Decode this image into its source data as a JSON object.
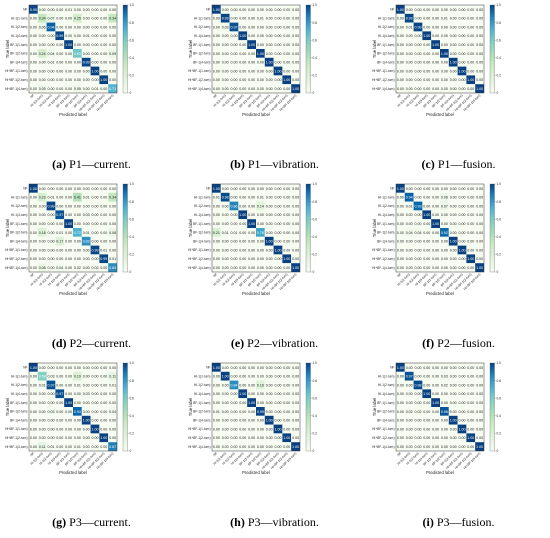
{
  "class_labels": [
    "NF",
    "HI-1(1-turn)",
    "HI-1(2-turn)",
    "HI-1(4-turn)",
    "BF-1(1-turn)",
    "BF-1(2-turn)",
    "BF-1(4-turn)",
    "HI+BF-1(1-turn)",
    "HI+BF-1(2-turn)",
    "HI+BF-1(4-turn)"
  ],
  "axis": {
    "ylabel": "True label",
    "xlabel": "Predicted label"
  },
  "colorbar": {
    "ticks": [
      "1.0",
      "0.8",
      "0.6",
      "0.4",
      "0.2",
      "0"
    ],
    "low_color": "#f7fcf0",
    "mid_color": "#7bccc4",
    "high_color": "#084081"
  },
  "chart_data": [
    {
      "type": "heatmap",
      "id": "a",
      "caption_letter": "(a)",
      "caption_text": " P1—current.",
      "matrix": [
        [
          0.99,
          0.0,
          0.0,
          0.0,
          0.01,
          0.0,
          0.0,
          0.0,
          0.0,
          0.0
        ],
        [
          0.0,
          0.34,
          0.07,
          0.0,
          0.0,
          0.25,
          0.0,
          0.0,
          0.0,
          0.34
        ],
        [
          0.0,
          0.06,
          0.94,
          0.0,
          0.0,
          0.0,
          0.0,
          0.0,
          0.0,
          0.0
        ],
        [
          0.0,
          0.0,
          0.0,
          0.99,
          0.0,
          0.0,
          0.01,
          0.0,
          0.0,
          0.0
        ],
        [
          0.0,
          0.0,
          0.0,
          0.0,
          1.0,
          0.0,
          0.0,
          0.0,
          0.0,
          0.0
        ],
        [
          0.0,
          0.24,
          0.04,
          0.0,
          0.0,
          0.63,
          0.0,
          0.0,
          0.0,
          0.09
        ],
        [
          0.0,
          0.0,
          0.01,
          0.0,
          0.0,
          0.0,
          0.99,
          0.0,
          0.0,
          0.0
        ],
        [
          0.0,
          0.0,
          0.0,
          0.0,
          0.0,
          0.0,
          0.0,
          1.0,
          0.0,
          0.0
        ],
        [
          0.0,
          0.0,
          0.0,
          0.0,
          0.0,
          0.0,
          0.0,
          0.0,
          1.0,
          0.0
        ],
        [
          0.0,
          0.05,
          0.0,
          0.0,
          0.0,
          0.05,
          0.0,
          0.01,
          0.0,
          0.71
        ]
      ]
    },
    {
      "type": "heatmap",
      "id": "b",
      "caption_letter": "(b)",
      "caption_text": " P1—vibration.",
      "matrix": [
        [
          1.0,
          0.0,
          0.0,
          0.0,
          0.0,
          0.0,
          0.0,
          0.0,
          0.0,
          0.0
        ],
        [
          0.0,
          0.99,
          0.0,
          0.0,
          0.0,
          0.01,
          0.0,
          0.0,
          0.0,
          0.0
        ],
        [
          0.0,
          0.03,
          0.97,
          0.0,
          0.0,
          0.0,
          0.0,
          0.0,
          0.0,
          0.0
        ],
        [
          0.0,
          0.0,
          0.0,
          1.0,
          0.0,
          0.0,
          0.0,
          0.0,
          0.0,
          0.0
        ],
        [
          0.0,
          0.0,
          0.0,
          0.0,
          1.0,
          0.0,
          0.0,
          0.0,
          0.0,
          0.0
        ],
        [
          0.0,
          0.0,
          0.0,
          0.0,
          0.0,
          1.0,
          0.0,
          0.0,
          0.0,
          0.0
        ],
        [
          0.0,
          0.0,
          0.0,
          0.0,
          0.0,
          0.0,
          1.0,
          0.0,
          0.0,
          0.0
        ],
        [
          0.0,
          0.0,
          0.0,
          0.0,
          0.0,
          0.0,
          0.0,
          1.0,
          0.0,
          0.0
        ],
        [
          0.0,
          0.0,
          0.0,
          0.0,
          0.0,
          0.0,
          0.0,
          0.0,
          1.0,
          0.0
        ],
        [
          0.0,
          0.0,
          0.0,
          0.0,
          0.0,
          0.0,
          0.0,
          0.0,
          0.0,
          1.0
        ]
      ]
    },
    {
      "type": "heatmap",
      "id": "c",
      "caption_letter": "(c)",
      "caption_text": " P1—fusion.",
      "matrix": [
        [
          1.0,
          0.0,
          0.0,
          0.0,
          0.0,
          0.0,
          0.0,
          0.0,
          0.0,
          0.0
        ],
        [
          0.0,
          0.99,
          0.0,
          0.0,
          0.0,
          0.01,
          0.0,
          0.0,
          0.0,
          0.0
        ],
        [
          0.0,
          0.01,
          0.99,
          0.0,
          0.0,
          0.0,
          0.0,
          0.0,
          0.0,
          0.0
        ],
        [
          0.0,
          0.0,
          0.0,
          1.0,
          0.0,
          0.0,
          0.0,
          0.0,
          0.0,
          0.0
        ],
        [
          0.0,
          0.0,
          0.0,
          0.0,
          1.0,
          0.0,
          0.0,
          0.0,
          0.0,
          0.0
        ],
        [
          0.0,
          0.0,
          0.0,
          0.0,
          0.0,
          1.0,
          0.0,
          0.0,
          0.0,
          0.0
        ],
        [
          0.0,
          0.0,
          0.0,
          0.0,
          0.0,
          0.0,
          1.0,
          0.0,
          0.0,
          0.0
        ],
        [
          0.0,
          0.0,
          0.0,
          0.0,
          0.0,
          0.0,
          0.0,
          1.0,
          0.0,
          0.0
        ],
        [
          0.0,
          0.0,
          0.0,
          0.0,
          0.0,
          0.0,
          0.0,
          0.0,
          1.0,
          0.0
        ],
        [
          0.0,
          0.0,
          0.0,
          0.0,
          0.0,
          0.0,
          0.0,
          0.0,
          0.0,
          1.0
        ]
      ]
    },
    {
      "type": "heatmap",
      "id": "d",
      "caption_letter": "(d)",
      "caption_text": " P2—current.",
      "matrix": [
        [
          1.0,
          0.0,
          0.0,
          0.0,
          0.0,
          0.0,
          0.0,
          0.0,
          0.0,
          0.0
        ],
        [
          0.0,
          0.23,
          0.01,
          0.0,
          0.0,
          0.41,
          0.01,
          0.0,
          0.0,
          0.34
        ],
        [
          0.0,
          0.0,
          0.99,
          0.0,
          0.0,
          0.0,
          0.0,
          0.0,
          0.0,
          0.0
        ],
        [
          0.0,
          0.0,
          0.0,
          0.97,
          0.0,
          0.0,
          0.03,
          0.0,
          0.0,
          0.0
        ],
        [
          0.0,
          0.0,
          0.0,
          0.0,
          1.0,
          0.0,
          0.0,
          0.0,
          0.0,
          0.0
        ],
        [
          0.0,
          0.18,
          0.0,
          0.01,
          0.0,
          0.72,
          0.01,
          0.0,
          0.0,
          0.08
        ],
        [
          0.0,
          0.0,
          0.0,
          0.17,
          0.0,
          0.0,
          0.83,
          0.0,
          0.0,
          0.0
        ],
        [
          0.0,
          0.0,
          0.0,
          0.0,
          0.0,
          0.0,
          0.0,
          0.99,
          0.01,
          0.0
        ],
        [
          0.0,
          0.0,
          0.0,
          0.0,
          0.0,
          0.0,
          0.0,
          0.0,
          0.99,
          0.01
        ],
        [
          0.0,
          0.08,
          0.0,
          0.04,
          0.0,
          0.02,
          0.0,
          0.02,
          0.0,
          0.84
        ]
      ]
    },
    {
      "type": "heatmap",
      "id": "e",
      "caption_letter": "(e)",
      "caption_text": " P2—vibration.",
      "matrix": [
        [
          1.0,
          0.0,
          0.0,
          0.0,
          0.0,
          0.0,
          0.0,
          0.0,
          0.0,
          0.0
        ],
        [
          0.01,
          0.98,
          0.0,
          0.0,
          0.0,
          0.01,
          0.0,
          0.0,
          0.0,
          0.0
        ],
        [
          0.0,
          0.0,
          0.86,
          0.0,
          0.0,
          0.14,
          0.0,
          0.0,
          0.0,
          0.0
        ],
        [
          0.0,
          0.0,
          0.0,
          1.0,
          0.0,
          0.0,
          0.0,
          0.0,
          0.0,
          0.0
        ],
        [
          0.0,
          0.0,
          0.0,
          0.0,
          1.0,
          0.0,
          0.0,
          0.0,
          0.0,
          0.0
        ],
        [
          0.21,
          0.01,
          0.01,
          0.0,
          0.0,
          0.76,
          0.0,
          0.0,
          0.0,
          0.0
        ],
        [
          0.0,
          0.0,
          0.0,
          0.0,
          0.0,
          0.0,
          1.0,
          0.0,
          0.0,
          0.0
        ],
        [
          0.0,
          0.0,
          0.0,
          0.0,
          0.0,
          0.0,
          0.0,
          1.0,
          0.0,
          0.0
        ],
        [
          0.0,
          0.0,
          0.0,
          0.0,
          0.0,
          0.0,
          0.0,
          0.0,
          1.0,
          0.0
        ],
        [
          0.0,
          0.0,
          0.0,
          0.0,
          0.0,
          0.0,
          0.0,
          0.0,
          0.0,
          1.0
        ]
      ]
    },
    {
      "type": "heatmap",
      "id": "f",
      "caption_letter": "(f)",
      "caption_text": " P2—fusion.",
      "matrix": [
        [
          1.0,
          0.0,
          0.0,
          0.0,
          0.0,
          0.0,
          0.0,
          0.0,
          0.0,
          0.0
        ],
        [
          0.0,
          0.94,
          0.0,
          0.0,
          0.0,
          0.06,
          0.0,
          0.0,
          0.0,
          0.0
        ],
        [
          0.0,
          0.01,
          0.93,
          0.0,
          0.0,
          0.07,
          0.0,
          0.0,
          0.0,
          0.0
        ],
        [
          0.0,
          0.0,
          0.0,
          1.0,
          0.0,
          0.0,
          0.0,
          0.0,
          0.0,
          0.0
        ],
        [
          0.0,
          0.0,
          0.0,
          0.0,
          1.0,
          0.0,
          0.0,
          0.0,
          0.0,
          0.0
        ],
        [
          0.0,
          0.04,
          0.04,
          0.0,
          0.0,
          0.92,
          0.0,
          0.0,
          0.0,
          0.0
        ],
        [
          0.0,
          0.0,
          0.0,
          0.0,
          0.0,
          0.0,
          1.0,
          0.0,
          0.0,
          0.0
        ],
        [
          0.0,
          0.0,
          0.0,
          0.0,
          0.0,
          0.0,
          0.0,
          1.0,
          0.0,
          0.0
        ],
        [
          0.0,
          0.0,
          0.0,
          0.0,
          0.0,
          0.0,
          0.0,
          0.0,
          1.0,
          0.0
        ],
        [
          0.0,
          0.0,
          0.0,
          0.0,
          0.0,
          0.0,
          0.0,
          0.0,
          0.0,
          1.0
        ]
      ]
    },
    {
      "type": "heatmap",
      "id": "g",
      "caption_letter": "(g)",
      "caption_text": " P3—current.",
      "matrix": [
        [
          1.0,
          0.0,
          0.0,
          0.0,
          0.0,
          0.0,
          0.0,
          0.0,
          0.0,
          0.0
        ],
        [
          0.0,
          0.58,
          0.03,
          0.0,
          0.0,
          0.19,
          0.0,
          0.0,
          0.0,
          0.11
        ],
        [
          0.0,
          0.01,
          0.97,
          0.0,
          0.0,
          0.01,
          0.0,
          0.0,
          0.0,
          0.01
        ],
        [
          0.0,
          0.0,
          0.0,
          0.97,
          0.0,
          0.0,
          0.03,
          0.0,
          0.0,
          0.0
        ],
        [
          0.0,
          0.0,
          0.0,
          0.0,
          1.0,
          0.0,
          0.0,
          0.0,
          0.0,
          0.0
        ],
        [
          0.0,
          0.0,
          0.03,
          0.0,
          0.0,
          0.93,
          0.0,
          0.0,
          0.0,
          0.04
        ],
        [
          0.0,
          0.0,
          0.0,
          0.0,
          0.0,
          0.0,
          1.0,
          0.0,
          0.0,
          0.0
        ],
        [
          0.0,
          0.0,
          0.0,
          0.0,
          0.0,
          0.0,
          0.0,
          1.0,
          0.0,
          0.0
        ],
        [
          0.0,
          0.0,
          0.0,
          0.0,
          0.0,
          0.0,
          0.0,
          0.0,
          1.0,
          0.0
        ],
        [
          0.0,
          0.11,
          0.01,
          0.0,
          0.0,
          0.01,
          0.0,
          0.0,
          0.0,
          0.87
        ]
      ]
    },
    {
      "type": "heatmap",
      "id": "h",
      "caption_letter": "(h)",
      "caption_text": " P3—vibration.",
      "matrix": [
        [
          1.0,
          0.0,
          0.0,
          0.0,
          0.0,
          0.0,
          0.0,
          0.0,
          0.0,
          0.0
        ],
        [
          0.0,
          1.0,
          0.0,
          0.0,
          0.0,
          0.0,
          0.0,
          0.0,
          0.0,
          0.0
        ],
        [
          0.0,
          0.0,
          0.84,
          0.0,
          0.0,
          0.16,
          0.0,
          0.0,
          0.0,
          0.0
        ],
        [
          0.0,
          0.0,
          0.0,
          1.0,
          0.0,
          0.0,
          0.0,
          0.0,
          0.0,
          0.0
        ],
        [
          0.0,
          0.0,
          0.0,
          0.0,
          1.0,
          0.0,
          0.0,
          0.0,
          0.0,
          0.0
        ],
        [
          0.01,
          0.0,
          0.0,
          0.0,
          0.0,
          0.99,
          0.0,
          0.0,
          0.0,
          0.0
        ],
        [
          0.0,
          0.0,
          0.0,
          0.0,
          0.0,
          0.0,
          1.0,
          0.0,
          0.0,
          0.0
        ],
        [
          0.0,
          0.0,
          0.0,
          0.0,
          0.0,
          0.0,
          0.0,
          1.0,
          0.0,
          0.0
        ],
        [
          0.0,
          0.0,
          0.0,
          0.0,
          0.0,
          0.0,
          0.0,
          0.0,
          1.0,
          0.0
        ],
        [
          0.0,
          0.0,
          0.0,
          0.0,
          0.0,
          0.0,
          0.0,
          0.0,
          0.0,
          1.0
        ]
      ]
    },
    {
      "type": "heatmap",
      "id": "i",
      "caption_letter": "(i)",
      "caption_text": " P3—fusion.",
      "matrix": [
        [
          1.0,
          0.0,
          0.0,
          0.0,
          0.0,
          0.0,
          0.0,
          0.0,
          0.0,
          0.0
        ],
        [
          0.0,
          0.97,
          0.0,
          0.0,
          0.0,
          0.03,
          0.0,
          0.0,
          0.0,
          0.0
        ],
        [
          0.0,
          0.0,
          0.98,
          0.0,
          0.0,
          0.02,
          0.0,
          0.0,
          0.0,
          0.0
        ],
        [
          0.0,
          0.0,
          0.0,
          1.0,
          0.0,
          0.0,
          0.0,
          0.0,
          0.0,
          0.0
        ],
        [
          0.0,
          0.0,
          0.0,
          0.0,
          1.0,
          0.0,
          0.0,
          0.0,
          0.0,
          0.0
        ],
        [
          0.0,
          0.02,
          0.02,
          0.0,
          0.0,
          0.96,
          0.0,
          0.0,
          0.0,
          0.0
        ],
        [
          0.0,
          0.0,
          0.0,
          0.0,
          0.0,
          0.0,
          1.0,
          0.0,
          0.0,
          0.0
        ],
        [
          0.0,
          0.0,
          0.0,
          0.0,
          0.0,
          0.0,
          0.0,
          1.0,
          0.0,
          0.0
        ],
        [
          0.0,
          0.0,
          0.0,
          0.0,
          0.0,
          0.0,
          0.0,
          0.0,
          1.0,
          0.0
        ],
        [
          0.0,
          0.0,
          0.0,
          0.0,
          0.0,
          0.0,
          0.0,
          0.0,
          0.0,
          1.0
        ]
      ]
    }
  ]
}
